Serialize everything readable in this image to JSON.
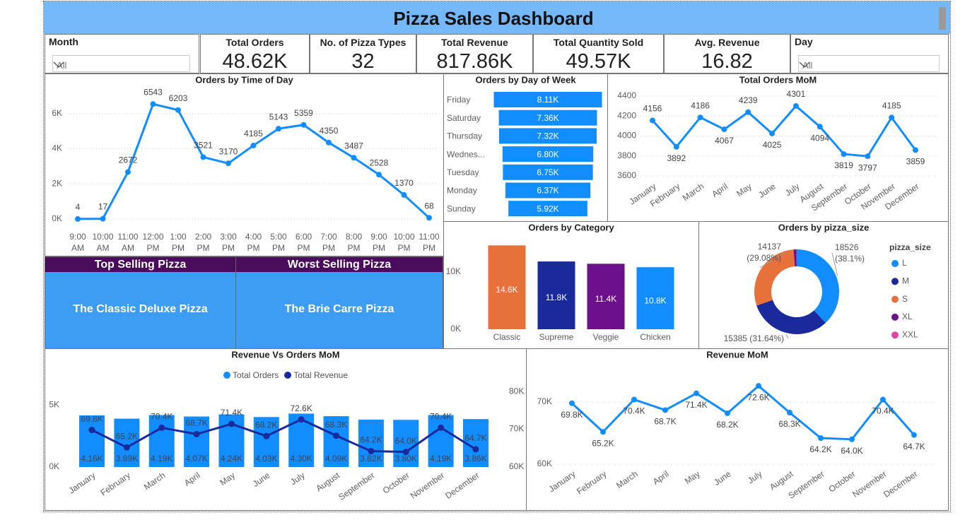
{
  "title": "Pizza Sales Dashboard",
  "slicers": [
    {
      "label": "Month",
      "value": "All"
    },
    {
      "label": "Day",
      "value": "All"
    }
  ],
  "kpis": [
    {
      "label": "Total Orders",
      "value": "48.62K"
    },
    {
      "label": "No. of Pizza Types",
      "value": "32"
    },
    {
      "label": "Total Revenue",
      "value": "817.86K"
    },
    {
      "label": "Total Quantity Sold",
      "value": "49.57K"
    },
    {
      "label": "Avg. Revenue",
      "value": "16.82"
    }
  ],
  "highlights": [
    {
      "label": "Top Selling Pizza",
      "value": "The Classic Deluxe Pizza"
    },
    {
      "label": "Worst Selling Pizza",
      "value": "The Brie Carre Pizza"
    }
  ],
  "chart_data": [
    {
      "type": "line",
      "title": "Orders by Time of Day",
      "categories": [
        "9:00 AM",
        "10:00 AM",
        "11:00 AM",
        "12:00 PM",
        "1:00 PM",
        "2:00 PM",
        "3:00 PM",
        "4:00 PM",
        "5:00 PM",
        "6:00 PM",
        "7:00 PM",
        "8:00 PM",
        "9:00 PM",
        "10:00 PM",
        "11:00 PM"
      ],
      "values": [
        4,
        17,
        2672,
        6543,
        6203,
        3521,
        3170,
        4185,
        5143,
        5359,
        4350,
        3487,
        2528,
        1370,
        68
      ],
      "color": "#118dff",
      "ylim": [
        0,
        7400
      ],
      "yticks": [
        {
          "value": 0,
          "label": "0K"
        },
        {
          "value": 2000,
          "label": "2K"
        },
        {
          "value": 4000,
          "label": "4K"
        },
        {
          "value": 6000,
          "label": "6K"
        }
      ],
      "grid": true
    },
    {
      "type": "funnel",
      "title": "Orders by Day of Week",
      "categories": [
        "Friday",
        "Saturday",
        "Thursday",
        "Wednes...",
        "Tuesday",
        "Monday",
        "Sunday"
      ],
      "values": [
        8110,
        7360,
        7320,
        6800,
        6750,
        6370,
        5920
      ],
      "value_labels": [
        "8.11K",
        "7.36K",
        "7.32K",
        "6.80K",
        "6.75K",
        "6.37K",
        "5.92K"
      ],
      "color": "#118dff"
    },
    {
      "type": "line",
      "title": "Total Orders MoM",
      "categories": [
        "January",
        "February",
        "March",
        "April",
        "May",
        "June",
        "July",
        "August",
        "September",
        "October",
        "November",
        "December"
      ],
      "values": [
        4156,
        3892,
        4186,
        4067,
        4239,
        4025,
        4301,
        4094,
        3819,
        3797,
        4185,
        3859
      ],
      "color": "#118dff",
      "ylim": [
        3600,
        4400
      ],
      "yticks": [
        3600,
        3800,
        4000,
        4200,
        4400
      ],
      "grid": true
    },
    {
      "type": "bar",
      "title": "Orders by Category",
      "categories": [
        "Classic",
        "Supreme",
        "Veggie",
        "Chicken"
      ],
      "values": [
        14600,
        11800,
        11400,
        10800
      ],
      "value_labels": [
        "14.6K",
        "11.8K",
        "11.4K",
        "10.8K"
      ],
      "colors": [
        "#e8703a",
        "#1a2a9c",
        "#6b0f8a",
        "#118dff"
      ],
      "ylim": [
        0,
        15500
      ],
      "yticks": [
        {
          "value": 0,
          "label": "0K"
        },
        {
          "value": 10000,
          "label": "10K"
        }
      ]
    },
    {
      "type": "donut",
      "title": "Orders by pizza_size",
      "legend_title": "pizza_size",
      "categories": [
        "L",
        "M",
        "S",
        "XL",
        "XXL"
      ],
      "values": [
        18526,
        15385,
        14137,
        544,
        28
      ],
      "value_labels": [
        "18526\n(38.1%)",
        "15385 (31.64%)",
        "14137\n(29.08%)",
        null,
        null
      ],
      "colors": [
        "#118dff",
        "#1a2a9c",
        "#e8703a",
        "#6b0f8a",
        "#e044a7"
      ],
      "legend": "right"
    },
    {
      "type": "combo",
      "title": "Revenue Vs Orders MoM",
      "categories": [
        "January",
        "February",
        "March",
        "April",
        "May",
        "June",
        "July",
        "August",
        "September",
        "October",
        "November",
        "December"
      ],
      "series": [
        {
          "name": "Total Orders",
          "type": "bar",
          "color": "#118dff",
          "values": [
            4156,
            3892,
            4186,
            4067,
            4239,
            4025,
            4301,
            4094,
            3819,
            3797,
            4185,
            3859
          ],
          "value_labels": [
            "4.16K",
            "3.89K",
            "4.19K",
            "4.07K",
            "4.24K",
            "4.03K",
            "4.30K",
            "4.09K",
            "3.82K",
            "3.80K",
            "4.19K",
            "3.86K"
          ]
        },
        {
          "name": "Total Revenue",
          "type": "line",
          "axis": "y2",
          "color": "#1a2a9c",
          "values": [
            69800,
            65200,
            70400,
            68700,
            71400,
            68200,
            72600,
            68300,
            64200,
            64000,
            70400,
            64700
          ],
          "value_labels": [
            "69.8K",
            "65.2K",
            "70.4K",
            "68.7K",
            "71.4K",
            "68.2K",
            "72.6K",
            "68.3K",
            "64.2K",
            "64.0K",
            "70.4K",
            "64.7K"
          ]
        }
      ],
      "ylim": [
        0,
        6600
      ],
      "yticks": [
        {
          "value": 0,
          "label": "0K"
        },
        {
          "value": 5000,
          "label": "5K"
        }
      ],
      "y2lim": [
        60000,
        81700
      ],
      "y2ticks": [
        {
          "value": 60000,
          "label": "60K"
        },
        {
          "value": 70000,
          "label": "70K"
        },
        {
          "value": 80000,
          "label": "80K"
        }
      ],
      "legend": "top"
    },
    {
      "type": "line",
      "title": "Revenue MoM",
      "categories": [
        "January",
        "February",
        "March",
        "April",
        "May",
        "June",
        "July",
        "August",
        "September",
        "October",
        "November",
        "December"
      ],
      "values": [
        69800,
        65200,
        70400,
        68700,
        71400,
        68200,
        72600,
        68300,
        64200,
        64000,
        70400,
        64700
      ],
      "value_labels": [
        "69.8K",
        "65.2K",
        "70.4K",
        "68.7K",
        "71.4K",
        "68.2K",
        "72.6K",
        "68.3K",
        "64.2K",
        "64.0K",
        "70.4K",
        "64.7K"
      ],
      "color": "#118dff",
      "ylim": [
        60000,
        73300
      ],
      "yticks": [
        {
          "value": 60000,
          "label": "60K"
        },
        {
          "value": 70000,
          "label": "70K"
        }
      ],
      "grid": true
    }
  ]
}
